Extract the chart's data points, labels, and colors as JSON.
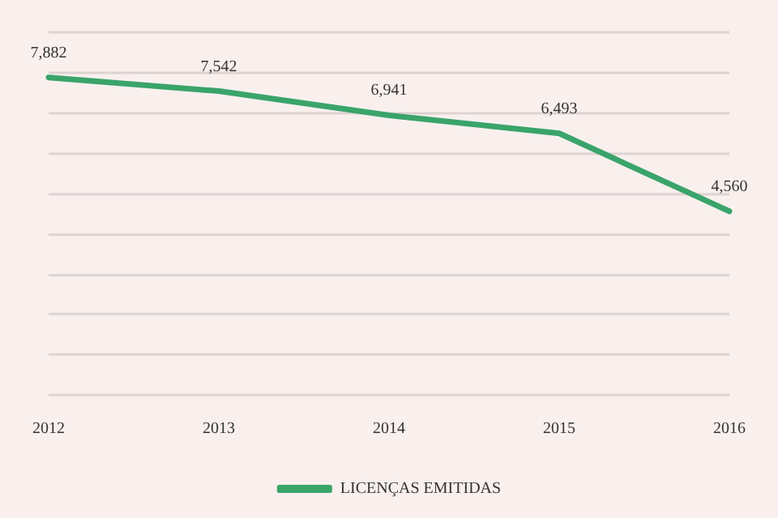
{
  "chart_data": {
    "type": "line",
    "categories": [
      "2012",
      "2013",
      "2014",
      "2015",
      "2016"
    ],
    "series": [
      {
        "name": "LICENÇAS EMITIDAS",
        "color": "#3aa46a",
        "values": [
          7882,
          7542,
          6941,
          6493,
          4560
        ],
        "value_labels": [
          "7,882",
          "7,542",
          "6,941",
          "6,493",
          "4,560"
        ]
      }
    ],
    "ylim": [
      0,
      9000
    ],
    "yticks": [
      {
        "value": 0,
        "label": null
      },
      {
        "value": 1000,
        "label": null
      },
      {
        "value": 2000,
        "label": null
      },
      {
        "value": 3000,
        "label": null
      },
      {
        "value": 4000,
        "label": null
      },
      {
        "value": 5000,
        "label": null
      },
      {
        "value": 6000,
        "label": null
      },
      {
        "value": 7000,
        "label": null
      },
      {
        "value": 8000,
        "label": null
      },
      {
        "value": 9000,
        "label": null
      }
    ],
    "tick_labels": "x",
    "grid": "y",
    "legend": "bottom",
    "marker": "none",
    "line_style": "solid"
  }
}
